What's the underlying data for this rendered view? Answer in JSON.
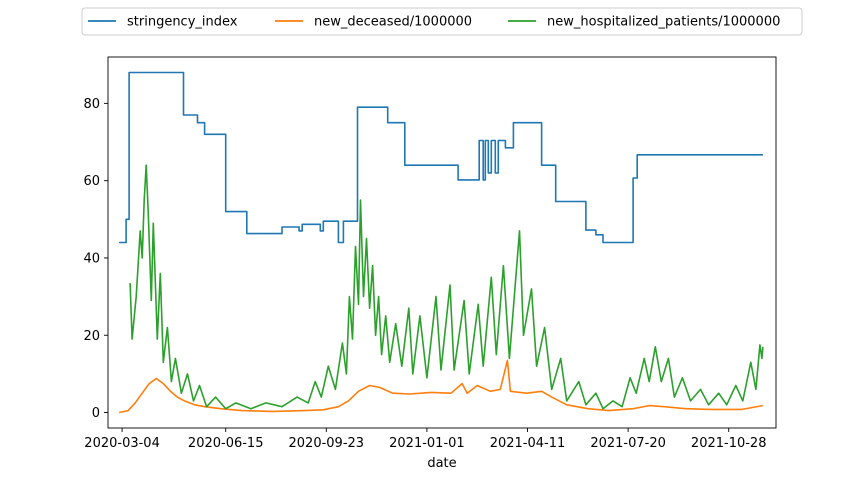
{
  "chart_data": {
    "type": "line",
    "title": "",
    "xlabel": "date",
    "ylabel": "",
    "x_range": [
      "2020-02-19",
      "2021-12-14"
    ],
    "ylim": [
      -4,
      92
    ],
    "x_ticks": [
      "2020-03-04",
      "2020-06-15",
      "2020-09-23",
      "2021-01-01",
      "2021-04-11",
      "2021-07-20",
      "2021-10-28"
    ],
    "y_ticks": [
      0,
      20,
      40,
      60,
      80
    ],
    "grid": false,
    "legend": "top-center, above plot, 3 columns",
    "series": [
      {
        "name": "stringency_index",
        "color": "#1f77b4",
        "step": true,
        "points": [
          [
            "2020-03-01",
            44
          ],
          [
            "2020-03-08",
            50
          ],
          [
            "2020-03-11",
            88
          ],
          [
            "2020-05-04",
            77
          ],
          [
            "2020-05-18",
            75
          ],
          [
            "2020-05-25",
            72
          ],
          [
            "2020-06-15",
            52
          ],
          [
            "2020-07-06",
            46.3
          ],
          [
            "2020-08-10",
            48
          ],
          [
            "2020-08-27",
            47
          ],
          [
            "2020-08-30",
            48.7
          ],
          [
            "2020-09-17",
            47
          ],
          [
            "2020-09-20",
            49.5
          ],
          [
            "2020-10-05",
            44
          ],
          [
            "2020-10-10",
            49.5
          ],
          [
            "2020-10-24",
            79
          ],
          [
            "2020-11-23",
            75
          ],
          [
            "2020-12-10",
            64
          ],
          [
            "2021-02-01",
            60.2
          ],
          [
            "2021-02-22",
            70.4
          ],
          [
            "2021-02-26",
            60.2
          ],
          [
            "2021-02-28",
            70.4
          ],
          [
            "2021-03-03",
            62
          ],
          [
            "2021-03-06",
            70.4
          ],
          [
            "2021-03-10",
            62
          ],
          [
            "2021-03-13",
            70.4
          ],
          [
            "2021-03-20",
            68.5
          ],
          [
            "2021-03-28",
            75
          ],
          [
            "2021-04-25",
            64
          ],
          [
            "2021-05-09",
            54.6
          ],
          [
            "2021-06-08",
            47.2
          ],
          [
            "2021-06-18",
            46
          ],
          [
            "2021-06-25",
            44
          ],
          [
            "2021-07-25",
            60.7
          ],
          [
            "2021-07-29",
            66.7
          ],
          [
            "2021-12-01",
            66.7
          ]
        ]
      },
      {
        "name": "new_deceased/1000000",
        "color": "#ff7f0e",
        "step": false,
        "points": [
          [
            "2020-03-01",
            0
          ],
          [
            "2020-03-10",
            0.5
          ],
          [
            "2020-03-17",
            2.5
          ],
          [
            "2020-03-24",
            5
          ],
          [
            "2020-03-31",
            7.5
          ],
          [
            "2020-04-07",
            8.8
          ],
          [
            "2020-04-14",
            7.5
          ],
          [
            "2020-04-21",
            5.5
          ],
          [
            "2020-04-28",
            4
          ],
          [
            "2020-05-05",
            3
          ],
          [
            "2020-05-15",
            2
          ],
          [
            "2020-05-25",
            1.5
          ],
          [
            "2020-06-10",
            1
          ],
          [
            "2020-07-01",
            0.5
          ],
          [
            "2020-08-01",
            0.3
          ],
          [
            "2020-09-01",
            0.5
          ],
          [
            "2020-09-20",
            0.7
          ],
          [
            "2020-10-05",
            1.5
          ],
          [
            "2020-10-15",
            3
          ],
          [
            "2020-10-25",
            5.5
          ],
          [
            "2020-11-05",
            7
          ],
          [
            "2020-11-15",
            6.5
          ],
          [
            "2020-11-28",
            5
          ],
          [
            "2020-12-15",
            4.8
          ],
          [
            "2021-01-05",
            5.2
          ],
          [
            "2021-01-25",
            5
          ],
          [
            "2021-02-05",
            7.5
          ],
          [
            "2021-02-10",
            5
          ],
          [
            "2021-02-20",
            7
          ],
          [
            "2021-03-05",
            5.5
          ],
          [
            "2021-03-15",
            6
          ],
          [
            "2021-03-22",
            13.5
          ],
          [
            "2021-03-25",
            5.5
          ],
          [
            "2021-04-10",
            5
          ],
          [
            "2021-04-25",
            5.5
          ],
          [
            "2021-05-05",
            4
          ],
          [
            "2021-05-20",
            2
          ],
          [
            "2021-06-10",
            1
          ],
          [
            "2021-07-01",
            0.5
          ],
          [
            "2021-07-25",
            1
          ],
          [
            "2021-08-10",
            1.8
          ],
          [
            "2021-08-25",
            1.5
          ],
          [
            "2021-09-15",
            1
          ],
          [
            "2021-10-10",
            0.8
          ],
          [
            "2021-11-10",
            0.8
          ],
          [
            "2021-12-01",
            1.8
          ]
        ]
      },
      {
        "name": "new_hospitalized_patients/1000000",
        "color": "#2ca02c",
        "step": false,
        "points": [
          [
            "2020-03-12",
            33.5
          ],
          [
            "2020-03-14",
            19
          ],
          [
            "2020-03-18",
            30
          ],
          [
            "2020-03-22",
            47
          ],
          [
            "2020-03-24",
            40
          ],
          [
            "2020-03-26",
            55
          ],
          [
            "2020-03-28",
            64
          ],
          [
            "2020-03-30",
            52
          ],
          [
            "2020-04-02",
            29
          ],
          [
            "2020-04-04",
            49
          ],
          [
            "2020-04-08",
            19
          ],
          [
            "2020-04-11",
            36
          ],
          [
            "2020-04-14",
            13
          ],
          [
            "2020-04-18",
            22
          ],
          [
            "2020-04-22",
            8
          ],
          [
            "2020-04-26",
            14
          ],
          [
            "2020-05-02",
            5
          ],
          [
            "2020-05-08",
            10
          ],
          [
            "2020-05-14",
            3
          ],
          [
            "2020-05-20",
            7
          ],
          [
            "2020-05-27",
            1.5
          ],
          [
            "2020-06-05",
            4
          ],
          [
            "2020-06-15",
            1
          ],
          [
            "2020-06-25",
            2.5
          ],
          [
            "2020-07-10",
            1
          ],
          [
            "2020-07-25",
            2.5
          ],
          [
            "2020-08-10",
            1.5
          ],
          [
            "2020-08-25",
            4
          ],
          [
            "2020-09-05",
            2.5
          ],
          [
            "2020-09-12",
            8
          ],
          [
            "2020-09-18",
            4
          ],
          [
            "2020-09-25",
            12
          ],
          [
            "2020-10-02",
            6
          ],
          [
            "2020-10-09",
            18
          ],
          [
            "2020-10-13",
            10
          ],
          [
            "2020-10-16",
            30
          ],
          [
            "2020-10-19",
            19
          ],
          [
            "2020-10-22",
            43
          ],
          [
            "2020-10-25",
            28
          ],
          [
            "2020-10-27",
            55
          ],
          [
            "2020-10-30",
            30
          ],
          [
            "2020-11-02",
            45
          ],
          [
            "2020-11-05",
            27
          ],
          [
            "2020-11-08",
            38
          ],
          [
            "2020-11-11",
            20
          ],
          [
            "2020-11-14",
            30
          ],
          [
            "2020-11-17",
            15
          ],
          [
            "2020-11-21",
            25
          ],
          [
            "2020-11-25",
            13
          ],
          [
            "2020-12-01",
            23
          ],
          [
            "2020-12-07",
            12
          ],
          [
            "2020-12-14",
            27
          ],
          [
            "2020-12-18",
            10
          ],
          [
            "2020-12-25",
            25
          ],
          [
            "2021-01-01",
            9
          ],
          [
            "2021-01-10",
            30
          ],
          [
            "2021-01-15",
            11
          ],
          [
            "2021-01-24",
            33
          ],
          [
            "2021-01-28",
            11
          ],
          [
            "2021-02-07",
            29
          ],
          [
            "2021-02-12",
            10
          ],
          [
            "2021-02-21",
            28
          ],
          [
            "2021-02-26",
            12
          ],
          [
            "2021-03-06",
            35
          ],
          [
            "2021-03-11",
            15
          ],
          [
            "2021-03-18",
            38
          ],
          [
            "2021-03-24",
            14
          ],
          [
            "2021-04-03",
            47
          ],
          [
            "2021-04-07",
            20
          ],
          [
            "2021-04-15",
            32
          ],
          [
            "2021-04-20",
            12
          ],
          [
            "2021-04-28",
            22
          ],
          [
            "2021-05-05",
            6
          ],
          [
            "2021-05-14",
            14
          ],
          [
            "2021-05-20",
            3
          ],
          [
            "2021-06-01",
            8
          ],
          [
            "2021-06-08",
            2
          ],
          [
            "2021-06-18",
            5
          ],
          [
            "2021-06-25",
            1
          ],
          [
            "2021-07-05",
            3
          ],
          [
            "2021-07-14",
            1.5
          ],
          [
            "2021-07-22",
            9
          ],
          [
            "2021-07-28",
            5
          ],
          [
            "2021-08-05",
            14
          ],
          [
            "2021-08-10",
            8
          ],
          [
            "2021-08-16",
            17
          ],
          [
            "2021-08-22",
            8
          ],
          [
            "2021-08-29",
            14
          ],
          [
            "2021-09-04",
            4
          ],
          [
            "2021-09-12",
            9
          ],
          [
            "2021-09-20",
            3
          ],
          [
            "2021-09-30",
            6
          ],
          [
            "2021-10-08",
            2
          ],
          [
            "2021-10-18",
            5
          ],
          [
            "2021-10-26",
            2
          ],
          [
            "2021-11-04",
            7
          ],
          [
            "2021-11-11",
            3
          ],
          [
            "2021-11-19",
            13
          ],
          [
            "2021-11-24",
            6
          ],
          [
            "2021-11-28",
            17.5
          ],
          [
            "2021-11-30",
            14
          ],
          [
            "2021-12-01",
            17
          ]
        ]
      }
    ]
  }
}
